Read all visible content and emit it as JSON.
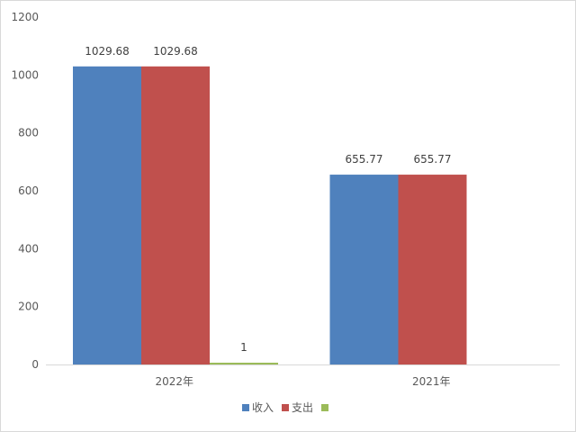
{
  "chart_data": {
    "type": "bar",
    "categories": [
      "2022年",
      "2021年"
    ],
    "series": [
      {
        "name": "收入",
        "values": [
          1029.68,
          655.77
        ],
        "color": "#4f81bd"
      },
      {
        "name": "支出",
        "values": [
          1029.68,
          655.77
        ],
        "color": "#c0504d"
      },
      {
        "name": "",
        "values": [
          1,
          null
        ],
        "color": "#9bbb59"
      }
    ],
    "data_labels": [
      [
        "1029.68",
        "655.77"
      ],
      [
        "1029.68",
        "655.77"
      ],
      [
        "1",
        ""
      ]
    ],
    "y_ticks": [
      "0",
      "200",
      "400",
      "600",
      "800",
      "1000",
      "1200"
    ],
    "ylim": [
      0,
      1200
    ],
    "grid": false,
    "legend_position": "bottom"
  }
}
